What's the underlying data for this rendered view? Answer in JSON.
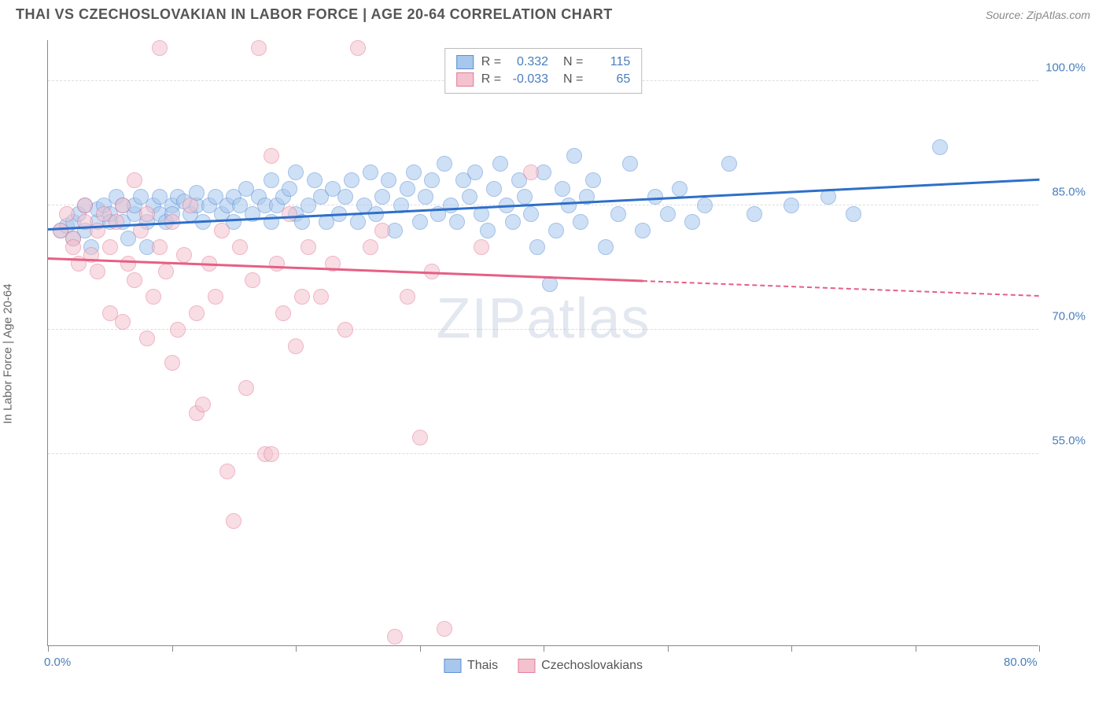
{
  "header": {
    "title": "THAI VS CZECHOSLOVAKIAN IN LABOR FORCE | AGE 20-64 CORRELATION CHART",
    "source": "Source: ZipAtlas.com"
  },
  "chart": {
    "type": "scatter",
    "ylabel": "In Labor Force | Age 20-64",
    "watermark": "ZIPatlas",
    "xlim": [
      0,
      80
    ],
    "ylim": [
      32,
      105
    ],
    "xtick_positions": [
      0,
      10,
      20,
      30,
      40,
      50,
      60,
      70,
      80
    ],
    "xtick_labels_start": "0.0%",
    "xtick_labels_end": "80.0%",
    "ytick_positions": [
      55,
      70,
      85,
      100
    ],
    "ytick_labels": [
      "55.0%",
      "70.0%",
      "85.0%",
      "100.0%"
    ],
    "grid_color": "#dddddd",
    "axis_color": "#888888",
    "background_color": "#ffffff",
    "marker_radius": 10,
    "marker_opacity": 0.55,
    "series": [
      {
        "name": "Thais",
        "label": "Thais",
        "fill": "#a7c7ed",
        "stroke": "#5b8fd6",
        "line_color": "#2e6fc9",
        "R": "0.332",
        "N": "115",
        "trend": {
          "x0": 0,
          "y0": 82.0,
          "x1": 80,
          "y1": 88.0,
          "solid_until": 80
        },
        "points": [
          [
            1,
            82
          ],
          [
            1.5,
            82.5
          ],
          [
            2,
            81
          ],
          [
            2,
            83
          ],
          [
            2.5,
            84
          ],
          [
            3,
            82
          ],
          [
            3,
            85
          ],
          [
            3.5,
            80
          ],
          [
            4,
            83
          ],
          [
            4,
            84.5
          ],
          [
            4.5,
            85
          ],
          [
            5,
            84
          ],
          [
            5,
            83
          ],
          [
            5.5,
            86
          ],
          [
            6,
            85
          ],
          [
            6,
            83
          ],
          [
            6.5,
            81
          ],
          [
            7,
            84
          ],
          [
            7,
            85
          ],
          [
            7.5,
            86
          ],
          [
            8,
            80
          ],
          [
            8,
            83
          ],
          [
            8.5,
            85
          ],
          [
            9,
            86
          ],
          [
            9,
            84
          ],
          [
            9.5,
            83
          ],
          [
            10,
            85
          ],
          [
            10,
            84
          ],
          [
            10.5,
            86
          ],
          [
            11,
            85.5
          ],
          [
            11.5,
            84
          ],
          [
            12,
            85
          ],
          [
            12,
            86.5
          ],
          [
            12.5,
            83
          ],
          [
            13,
            85
          ],
          [
            13.5,
            86
          ],
          [
            14,
            84
          ],
          [
            14.5,
            85
          ],
          [
            15,
            86
          ],
          [
            15,
            83
          ],
          [
            15.5,
            85
          ],
          [
            16,
            87
          ],
          [
            16.5,
            84
          ],
          [
            17,
            86
          ],
          [
            17.5,
            85
          ],
          [
            18,
            88
          ],
          [
            18,
            83
          ],
          [
            18.5,
            85
          ],
          [
            19,
            86
          ],
          [
            19.5,
            87
          ],
          [
            20,
            84
          ],
          [
            20,
            89
          ],
          [
            20.5,
            83
          ],
          [
            21,
            85
          ],
          [
            21.5,
            88
          ],
          [
            22,
            86
          ],
          [
            22.5,
            83
          ],
          [
            23,
            87
          ],
          [
            23.5,
            84
          ],
          [
            24,
            86
          ],
          [
            24.5,
            88
          ],
          [
            25,
            83
          ],
          [
            25.5,
            85
          ],
          [
            26,
            89
          ],
          [
            26.5,
            84
          ],
          [
            27,
            86
          ],
          [
            27.5,
            88
          ],
          [
            28,
            82
          ],
          [
            28.5,
            85
          ],
          [
            29,
            87
          ],
          [
            29.5,
            89
          ],
          [
            30,
            83
          ],
          [
            30.5,
            86
          ],
          [
            31,
            88
          ],
          [
            31.5,
            84
          ],
          [
            32,
            90
          ],
          [
            32.5,
            85
          ],
          [
            33,
            83
          ],
          [
            33.5,
            88
          ],
          [
            34,
            86
          ],
          [
            34.5,
            89
          ],
          [
            35,
            84
          ],
          [
            35.5,
            82
          ],
          [
            36,
            87
          ],
          [
            36.5,
            90
          ],
          [
            37,
            85
          ],
          [
            37.5,
            83
          ],
          [
            38,
            88
          ],
          [
            38.5,
            86
          ],
          [
            39,
            84
          ],
          [
            39.5,
            80
          ],
          [
            40,
            89
          ],
          [
            40.5,
            75.5
          ],
          [
            41,
            82
          ],
          [
            41.5,
            87
          ],
          [
            42,
            85
          ],
          [
            42.5,
            91
          ],
          [
            43,
            83
          ],
          [
            43.5,
            86
          ],
          [
            44,
            88
          ],
          [
            45,
            80
          ],
          [
            46,
            84
          ],
          [
            47,
            90
          ],
          [
            48,
            82
          ],
          [
            49,
            86
          ],
          [
            50,
            84
          ],
          [
            51,
            87
          ],
          [
            52,
            83
          ],
          [
            53,
            85
          ],
          [
            55,
            90
          ],
          [
            57,
            84
          ],
          [
            60,
            85
          ],
          [
            63,
            86
          ],
          [
            65,
            84
          ],
          [
            72,
            92
          ]
        ]
      },
      {
        "name": "Czechoslovakians",
        "label": "Czechoslovakians",
        "fill": "#f4c2ce",
        "stroke": "#e37b96",
        "line_color": "#e65f85",
        "R": "-0.033",
        "N": "65",
        "trend": {
          "x0": 0,
          "y0": 78.5,
          "x1": 80,
          "y1": 74.0,
          "solid_until": 48
        },
        "points": [
          [
            1,
            82
          ],
          [
            1.5,
            84
          ],
          [
            2,
            81
          ],
          [
            2,
            80
          ],
          [
            2.5,
            78
          ],
          [
            3,
            83
          ],
          [
            3,
            85
          ],
          [
            3.5,
            79
          ],
          [
            4,
            82
          ],
          [
            4,
            77
          ],
          [
            4.5,
            84
          ],
          [
            5,
            80
          ],
          [
            5,
            72
          ],
          [
            5.5,
            83
          ],
          [
            6,
            85
          ],
          [
            6,
            71
          ],
          [
            6.5,
            78
          ],
          [
            7,
            88
          ],
          [
            7,
            76
          ],
          [
            7.5,
            82
          ],
          [
            8,
            84
          ],
          [
            8,
            69
          ],
          [
            8.5,
            74
          ],
          [
            9,
            104
          ],
          [
            9,
            80
          ],
          [
            9.5,
            77
          ],
          [
            10,
            83
          ],
          [
            10,
            66
          ],
          [
            10.5,
            70
          ],
          [
            11,
            79
          ],
          [
            11.5,
            85
          ],
          [
            12,
            72
          ],
          [
            12,
            60
          ],
          [
            12.5,
            61
          ],
          [
            13,
            78
          ],
          [
            13.5,
            74
          ],
          [
            14,
            82
          ],
          [
            14.5,
            53
          ],
          [
            15,
            47
          ],
          [
            15.5,
            80
          ],
          [
            16,
            63
          ],
          [
            16.5,
            76
          ],
          [
            17,
            104
          ],
          [
            17.5,
            55
          ],
          [
            18,
            91
          ],
          [
            18,
            55
          ],
          [
            18.5,
            78
          ],
          [
            19,
            72
          ],
          [
            19.5,
            84
          ],
          [
            20,
            68
          ],
          [
            20.5,
            74
          ],
          [
            21,
            80
          ],
          [
            22,
            74
          ],
          [
            23,
            78
          ],
          [
            24,
            70
          ],
          [
            25,
            104
          ],
          [
            26,
            80
          ],
          [
            27,
            82
          ],
          [
            28,
            33
          ],
          [
            29,
            74
          ],
          [
            30,
            57
          ],
          [
            31,
            77
          ],
          [
            32,
            34
          ],
          [
            35,
            80
          ],
          [
            39,
            89
          ]
        ]
      }
    ]
  },
  "legend": {
    "R_label": "R =",
    "N_label": "N ="
  }
}
